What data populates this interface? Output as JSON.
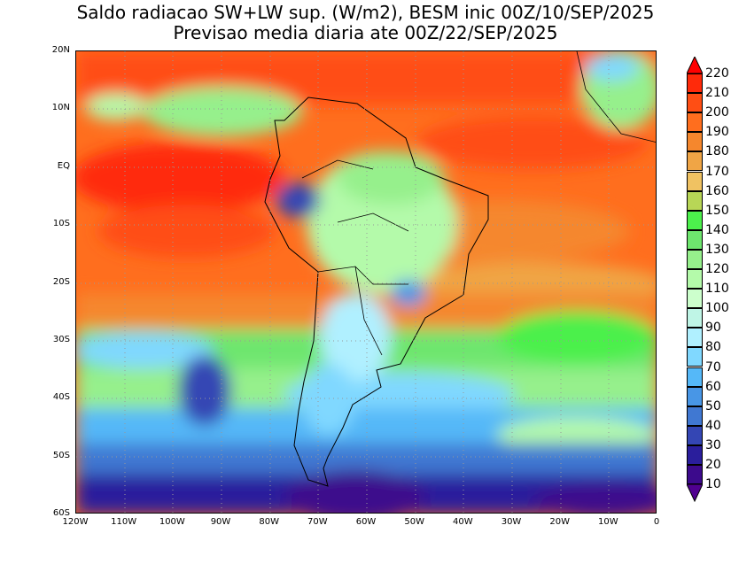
{
  "title": {
    "line1": "Saldo radiacao SW+LW sup. (W/m2), BESM inic 00Z/10/SEP/2025",
    "line2": "Previsao media diaria ate 00Z/22/SEP/2025"
  },
  "map": {
    "lat_labels": [
      "20N",
      "10N",
      "EQ",
      "10S",
      "20S",
      "30S",
      "40S",
      "50S",
      "60S"
    ],
    "lon_labels": [
      "120W",
      "110W",
      "100W",
      "90W",
      "80W",
      "70W",
      "60W",
      "50W",
      "40W",
      "30W",
      "20W",
      "10W",
      "0"
    ]
  },
  "colorbar": {
    "labels": [
      "220",
      "210",
      "200",
      "190",
      "180",
      "170",
      "160",
      "150",
      "140",
      "130",
      "120",
      "110",
      "100",
      "90",
      "80",
      "70",
      "60",
      "50",
      "40",
      "30",
      "20",
      "10"
    ],
    "colors": [
      "#ff2a0a",
      "#ff4e14",
      "#ff6e1e",
      "#f5872d",
      "#f0a545",
      "#f0c262",
      "#b8d656",
      "#4cf04c",
      "#6ee66e",
      "#96f08c",
      "#b4faaa",
      "#ccffcc",
      "#bff5e6",
      "#b0f0ff",
      "#80d8ff",
      "#55b8f8",
      "#4896e6",
      "#4078d2",
      "#3446b4",
      "#2a1e9c",
      "#3c0a8c"
    ],
    "over_color": "#ff0000",
    "under_color": "#500090"
  }
}
